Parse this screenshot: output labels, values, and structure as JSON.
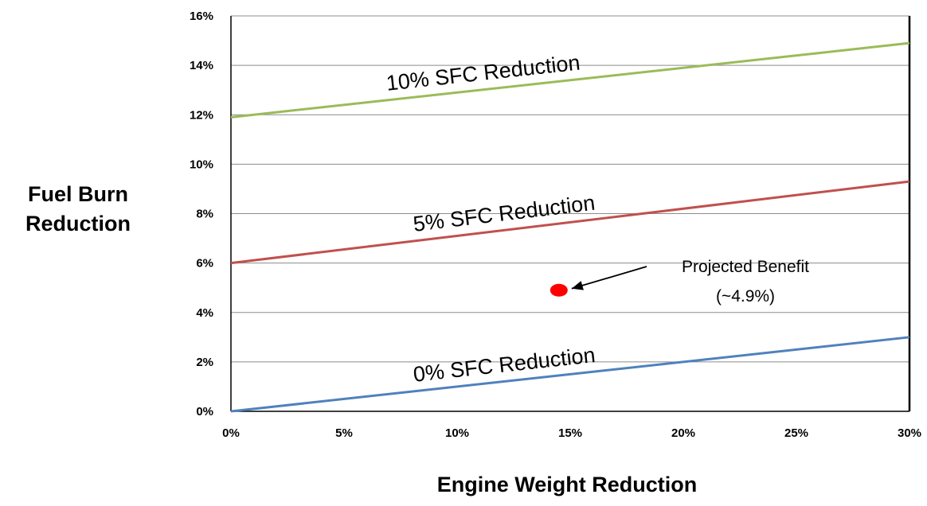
{
  "chart_data": {
    "type": "line",
    "x": [
      0,
      30
    ],
    "xlim": [
      0,
      30
    ],
    "ylim": [
      0,
      16
    ],
    "xticks": [
      "0%",
      "5%",
      "10%",
      "15%",
      "20%",
      "25%",
      "30%"
    ],
    "yticks": [
      "0%",
      "2%",
      "4%",
      "6%",
      "8%",
      "10%",
      "12%",
      "14%",
      "16%"
    ],
    "xlabel": "Engine Weight Reduction",
    "ylabel_lines": [
      "Fuel Burn",
      "Reduction"
    ],
    "grid": "horizontal",
    "series": [
      {
        "name": "10% SFC Reduction",
        "values": [
          11.9,
          14.9
        ],
        "color": "#9bbb59"
      },
      {
        "name": "5% SFC Reduction",
        "values": [
          6.0,
          9.3
        ],
        "color": "#c0504d"
      },
      {
        "name": "0% SFC Reduction",
        "values": [
          0.0,
          3.0
        ],
        "color": "#4f81bd"
      }
    ],
    "points": [
      {
        "x": 14.5,
        "y": 4.9,
        "color": "#ff0000"
      }
    ],
    "annotation": {
      "lines": [
        "Projected Benefit",
        "(~4.9%)"
      ]
    }
  }
}
